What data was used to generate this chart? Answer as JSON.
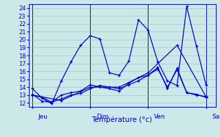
{
  "background_color": "#cce8e8",
  "grid_color": "#99bbbb",
  "line_color": "#0000cc",
  "xlabel": "Température (°c)",
  "ylim": [
    11.5,
    24.5
  ],
  "xlim": [
    -0.2,
    9.5
  ],
  "yticks": [
    12,
    13,
    14,
    15,
    16,
    17,
    18,
    19,
    20,
    21,
    22,
    23,
    24
  ],
  "day_positions": [
    0.3,
    3.3,
    6.3,
    9.3
  ],
  "day_labels": [
    "Jeu",
    "Dim",
    "Ven",
    "Sam"
  ],
  "day_vlines": [
    0,
    3,
    6,
    9
  ],
  "series": [
    {
      "x": [
        0,
        0.5,
        1.0,
        1.5,
        2.0,
        2.5,
        3.0,
        3.5,
        4.0,
        4.5,
        5.0,
        5.5,
        6.0,
        6.5,
        7.0,
        7.5,
        8.0,
        8.5,
        9.0
      ],
      "y": [
        13.8,
        12.6,
        11.9,
        14.8,
        17.2,
        19.3,
        20.5,
        20.1,
        15.8,
        15.5,
        17.3,
        22.5,
        21.2,
        17.2,
        14.8,
        14.2,
        24.2,
        19.2,
        14.3
      ]
    },
    {
      "x": [
        0,
        0.5,
        1.0,
        1.5,
        2.0,
        2.5,
        3.0,
        3.5,
        4.0,
        4.5,
        5.0,
        5.5,
        6.0,
        6.5,
        7.0,
        7.5,
        8.0,
        8.5,
        9.0
      ],
      "y": [
        13.0,
        12.7,
        12.1,
        13.0,
        13.3,
        13.5,
        14.3,
        14.0,
        13.8,
        13.5,
        14.5,
        15.2,
        15.5,
        16.5,
        13.8,
        16.4,
        13.3,
        13.0,
        12.8
      ]
    },
    {
      "x": [
        0,
        0.5,
        1.0,
        1.5,
        2.0,
        2.5,
        3.0,
        3.5,
        4.0,
        4.5,
        5.0,
        5.5,
        6.0,
        6.5,
        7.0,
        7.5,
        8.0,
        8.5,
        9.0
      ],
      "y": [
        13.1,
        12.2,
        12.1,
        12.5,
        13.0,
        13.2,
        13.8,
        14.2,
        14.0,
        13.8,
        14.3,
        14.8,
        15.5,
        16.3,
        14.0,
        16.2,
        13.3,
        13.1,
        12.7
      ]
    },
    {
      "x": [
        0,
        1.5,
        3.0,
        4.5,
        6.0,
        7.5,
        9.0
      ],
      "y": [
        13.0,
        12.3,
        14.0,
        14.0,
        15.8,
        19.3,
        12.8
      ]
    }
  ]
}
